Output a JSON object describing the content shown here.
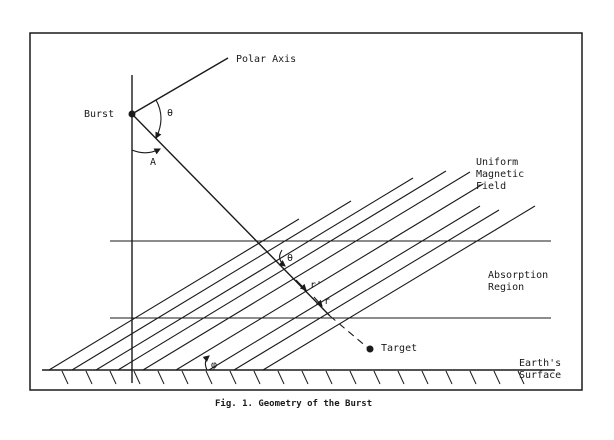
{
  "labels": {
    "polar_axis": "Polar Axis",
    "burst": "Burst",
    "theta_top": "θ",
    "angle_a": "A",
    "field_line1": "Uniform",
    "field_line2": "Magnetic",
    "field_line3": "Field",
    "theta_mid": "θ",
    "r_prime": "r'",
    "r": "r",
    "absorption_line1": "Absorption",
    "absorption_line2": "Region",
    "target": "Target",
    "earth_line1": "Earth's",
    "earth_line2": "Surface",
    "phi": "φ"
  },
  "caption": "Fig. 1.  Geometry of the Burst"
}
